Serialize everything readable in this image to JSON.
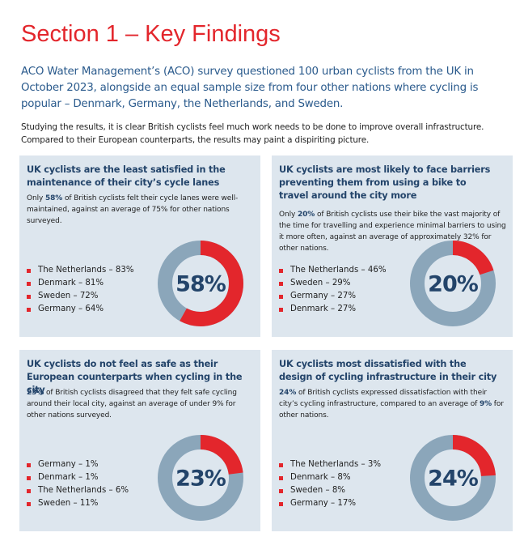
{
  "title": "Section 1 – Key Findings",
  "intro": "ACO Water Management’s (ACO) survey questioned 100 urban cyclists from the UK in October 2023, alongside an equal sample size from four other nations where cycling is popular – Denmark, Germany, the Netherlands, and Sweden.",
  "lead": "Studying the results, it is clear British cyclists feel much work needs to be done to improve overall infrastructure. Compared to their European counterparts, the results may paint a dispiriting picture.",
  "panels": [
    {
      "heading": "UK cyclists are the least satisfied in the maintenance of their city’s cycle lanes",
      "body": [
        {
          "text": "Only ",
          "bold": false
        },
        {
          "text": "58%",
          "bold": true
        },
        {
          "text": " of British cyclists felt their cycle lanes were well-maintained, against an average of 75% for other nations surveyed.",
          "bold": false
        }
      ],
      "list": [
        "The Netherlands – 83%",
        "Denmark – 81%",
        "Sweden – 72%",
        "Germany – 64%"
      ],
      "value": 58,
      "value_label": "58%"
    },
    {
      "heading": "UK cyclists are most likely to face barriers preventing them from using a bike to travel around the city more",
      "body": [
        {
          "text": "Only ",
          "bold": false
        },
        {
          "text": "20%",
          "bold": true
        },
        {
          "text": " of British cyclists use their bike the vast majority of the time for travelling and experience minimal barriers to using it more often, against an average of approximately 32% for other nations.",
          "bold": false
        }
      ],
      "list": [
        "The Netherlands – 46%",
        "Sweden – 29%",
        "Germany – 27%",
        "Denmark – 27%"
      ],
      "value": 20,
      "value_label": "20%"
    },
    {
      "heading": "UK cyclists do not feel as safe as their European counterparts when cycling in the city",
      "body": [
        {
          "text": "23%",
          "bold": true
        },
        {
          "text": " of British cyclists disagreed that they felt safe cycling around their local city, against an average of under 9% for other nations surveyed.",
          "bold": false
        }
      ],
      "list": [
        "Germany – 1%",
        "Denmark – 1%",
        "The Netherlands – 6%",
        "Sweden – 11%"
      ],
      "value": 23,
      "value_label": "23%"
    },
    {
      "heading": "UK cyclists most dissatisfied with the design of cycling infrastructure in their city",
      "body": [
        {
          "text": "24%",
          "bold": true
        },
        {
          "text": " of British cyclists expressed dissatisfaction with their city’s cycling infrastructure, compared to an average of ",
          "bold": false
        },
        {
          "text": "9%",
          "bold": true
        },
        {
          "text": " for other nations.",
          "bold": false
        }
      ],
      "list": [
        "The Netherlands – 3%",
        "Denmark – 8%",
        "Sweden – 8%",
        "Germany – 17%"
      ],
      "value": 24,
      "value_label": "24%"
    }
  ]
}
